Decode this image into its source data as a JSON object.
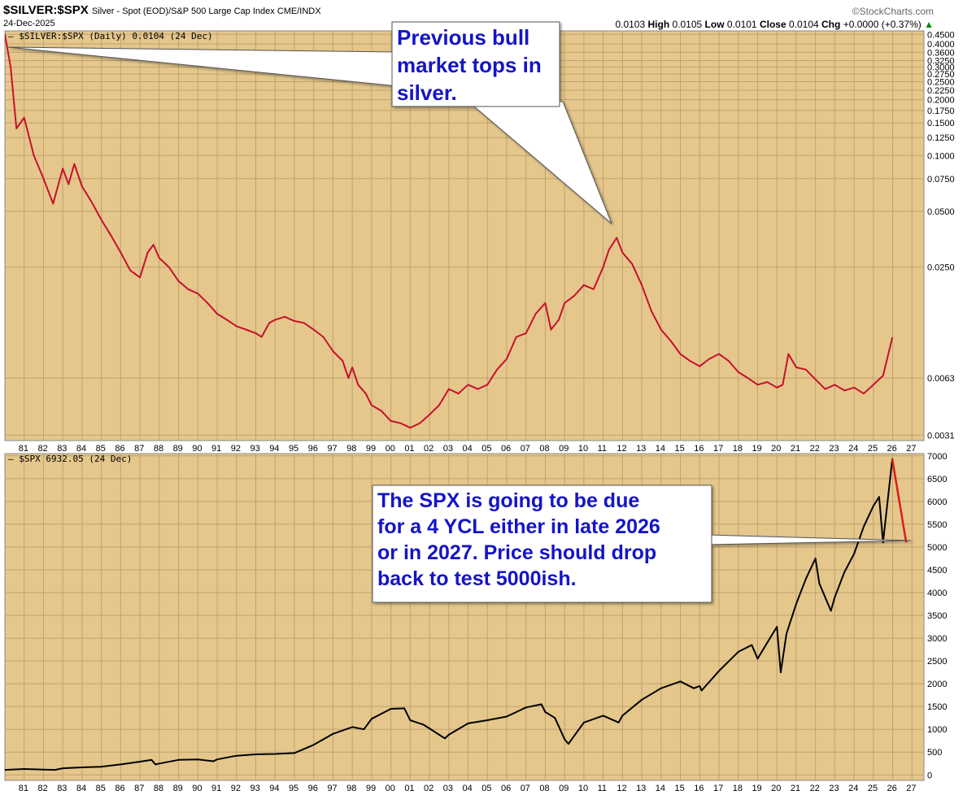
{
  "header": {
    "symbol": "$SILVER:$SPX",
    "description": "Silver - Spot (EOD)/S&P 500 Large Cap Index CME/INDX",
    "date": "24-Dec-2025",
    "brand": "©StockCharts.com",
    "quote_open_tail": "0.0103",
    "high_label": "High",
    "high": "0.0105",
    "low_label": "Low",
    "low": "0.0101",
    "close_label": "Close",
    "close": "0.0104",
    "chg_label": "Chg",
    "chg": "+0.0000 (+0.37%)",
    "chg_arrow": "▲"
  },
  "colors": {
    "plot_bg": "#e5c78c",
    "grid": "#bfa26e",
    "ratio_line": "#c8102e",
    "spx_line": "#000000",
    "projection": "#e01b1b",
    "callout_text": "#1414c8"
  },
  "x_labels": [
    "81",
    "82",
    "83",
    "84",
    "85",
    "86",
    "87",
    "88",
    "89",
    "90",
    "91",
    "92",
    "93",
    "94",
    "95",
    "96",
    "97",
    "98",
    "99",
    "00",
    "01",
    "02",
    "03",
    "04",
    "05",
    "06",
    "07",
    "08",
    "09",
    "10",
    "11",
    "12",
    "13",
    "14",
    "15",
    "16",
    "17",
    "18",
    "19",
    "20",
    "21",
    "22",
    "23",
    "24",
    "25",
    "26",
    "27"
  ],
  "chart_data": [
    {
      "type": "line",
      "legend": "$SILVER:$SPX (Daily) 0.0104 (24 Dec)",
      "y_scale": "log",
      "ylim": [
        0.0029,
        0.47
      ],
      "y_ticks": [
        "0.4500",
        "0.4000",
        "0.3600",
        "0.3250",
        "0.3000",
        "0.2750",
        "0.2500",
        "0.2250",
        "0.2000",
        "0.1750",
        "0.1500",
        "0.1250",
        "0.1000",
        "0.0750",
        "0.0500",
        "0.0250",
        "0.0063",
        "0.0031"
      ],
      "y_tick_values": [
        0.45,
        0.4,
        0.36,
        0.325,
        0.3,
        0.275,
        0.25,
        0.225,
        0.2,
        0.175,
        0.15,
        0.125,
        0.1,
        0.075,
        0.05,
        0.025,
        0.0063,
        0.0031
      ],
      "x": [
        1980.0,
        1980.3,
        1980.6,
        1981.0,
        1981.5,
        1982.0,
        1982.5,
        1983.0,
        1983.3,
        1983.6,
        1984.0,
        1984.5,
        1985.0,
        1985.5,
        1986.0,
        1986.5,
        1987.0,
        1987.4,
        1987.7,
        1988.0,
        1988.5,
        1989.0,
        1989.5,
        1990.0,
        1990.5,
        1991.0,
        1991.5,
        1992.0,
        1992.5,
        1993.0,
        1993.3,
        1993.7,
        1994.0,
        1994.5,
        1995.0,
        1995.5,
        1996.0,
        1996.5,
        1997.0,
        1997.5,
        1997.8,
        1998.0,
        1998.3,
        1998.7,
        1999.0,
        1999.5,
        2000.0,
        2000.5,
        2001.0,
        2001.5,
        2002.0,
        2002.5,
        2003.0,
        2003.5,
        2004.0,
        2004.5,
        2005.0,
        2005.5,
        2006.0,
        2006.5,
        2007.0,
        2007.5,
        2008.0,
        2008.3,
        2008.7,
        2009.0,
        2009.5,
        2010.0,
        2010.5,
        2011.0,
        2011.3,
        2011.7,
        2012.0,
        2012.5,
        2013.0,
        2013.5,
        2014.0,
        2014.5,
        2015.0,
        2015.5,
        2016.0,
        2016.5,
        2017.0,
        2017.5,
        2018.0,
        2018.5,
        2019.0,
        2019.5,
        2020.0,
        2020.3,
        2020.6,
        2021.0,
        2021.5,
        2022.0,
        2022.5,
        2023.0,
        2023.5,
        2024.0,
        2024.5,
        2025.0,
        2025.5,
        2025.98
      ],
      "y": [
        0.45,
        0.3,
        0.14,
        0.16,
        0.1,
        0.075,
        0.055,
        0.085,
        0.07,
        0.09,
        0.068,
        0.056,
        0.045,
        0.037,
        0.03,
        0.024,
        0.022,
        0.03,
        0.033,
        0.028,
        0.025,
        0.021,
        0.019,
        0.018,
        0.016,
        0.014,
        0.013,
        0.012,
        0.0115,
        0.011,
        0.0105,
        0.0125,
        0.013,
        0.0135,
        0.0128,
        0.0125,
        0.0115,
        0.0105,
        0.0088,
        0.0078,
        0.0063,
        0.0072,
        0.0058,
        0.0052,
        0.0045,
        0.0042,
        0.0037,
        0.0036,
        0.0034,
        0.0036,
        0.004,
        0.0045,
        0.0055,
        0.0052,
        0.0058,
        0.0055,
        0.0058,
        0.007,
        0.008,
        0.0105,
        0.011,
        0.014,
        0.016,
        0.0115,
        0.013,
        0.016,
        0.0175,
        0.02,
        0.019,
        0.025,
        0.031,
        0.036,
        0.03,
        0.026,
        0.02,
        0.0145,
        0.0115,
        0.01,
        0.0085,
        0.0078,
        0.0073,
        0.008,
        0.0085,
        0.0078,
        0.0068,
        0.0063,
        0.0058,
        0.006,
        0.0056,
        0.0058,
        0.0085,
        0.0072,
        0.007,
        0.0062,
        0.0055,
        0.0058,
        0.0054,
        0.0056,
        0.0052,
        0.0058,
        0.0065,
        0.0104
      ]
    },
    {
      "type": "line",
      "legend": "$SPX 6932.05 (24 Dec)",
      "y_scale": "linear",
      "ylim": [
        -120,
        7050
      ],
      "y_ticks": [
        "7000",
        "6500",
        "6000",
        "5500",
        "5000",
        "4500",
        "4000",
        "3500",
        "3000",
        "2500",
        "2000",
        "1500",
        "1000",
        "500",
        "0"
      ],
      "y_tick_values": [
        7000,
        6500,
        6000,
        5500,
        5000,
        4500,
        4000,
        3500,
        3000,
        2500,
        2000,
        1500,
        1000,
        500,
        0
      ],
      "x": [
        1980.0,
        1981.0,
        1982.0,
        1982.6,
        1983.0,
        1984.0,
        1985.0,
        1986.0,
        1987.0,
        1987.6,
        1987.8,
        1988.0,
        1989.0,
        1990.0,
        1990.8,
        1991.0,
        1992.0,
        1993.0,
        1994.0,
        1995.0,
        1996.0,
        1997.0,
        1998.0,
        1998.6,
        1999.0,
        2000.0,
        2000.7,
        2001.0,
        2001.7,
        2002.0,
        2002.8,
        2003.0,
        2004.0,
        2005.0,
        2006.0,
        2007.0,
        2007.8,
        2008.0,
        2008.5,
        2009.0,
        2009.2,
        2010.0,
        2011.0,
        2011.8,
        2012.0,
        2013.0,
        2014.0,
        2015.0,
        2015.7,
        2016.0,
        2016.1,
        2017.0,
        2018.0,
        2018.7,
        2019.0,
        2019.5,
        2020.0,
        2020.2,
        2020.5,
        2021.0,
        2021.5,
        2022.0,
        2022.2,
        2022.8,
        2023.0,
        2023.5,
        2024.0,
        2024.5,
        2025.0,
        2025.3,
        2025.5,
        2025.98
      ],
      "y": [
        110,
        130,
        115,
        110,
        145,
        165,
        180,
        230,
        290,
        330,
        230,
        250,
        330,
        340,
        300,
        340,
        420,
        450,
        460,
        480,
        660,
        900,
        1050,
        1000,
        1230,
        1450,
        1460,
        1200,
        1100,
        1020,
        800,
        880,
        1130,
        1200,
        1280,
        1480,
        1550,
        1380,
        1250,
        780,
        680,
        1150,
        1300,
        1150,
        1300,
        1650,
        1900,
        2050,
        1900,
        1950,
        1850,
        2280,
        2700,
        2850,
        2550,
        2900,
        3250,
        2250,
        3100,
        3750,
        4300,
        4750,
        4200,
        3600,
        3900,
        4450,
        4850,
        5450,
        5900,
        6100,
        5100,
        6932
      ]
    }
  ],
  "annotations": {
    "top": [
      "Previous bull",
      "market tops in",
      "silver."
    ],
    "bottom": [
      "The SPX is going to be due",
      "for a 4 YCL either in late 2026",
      "or in 2027. Price should drop",
      "back to test 5000ish."
    ]
  },
  "projection": {
    "x": [
      2025.98,
      2026.7
    ],
    "y": [
      6932,
      5100
    ]
  }
}
